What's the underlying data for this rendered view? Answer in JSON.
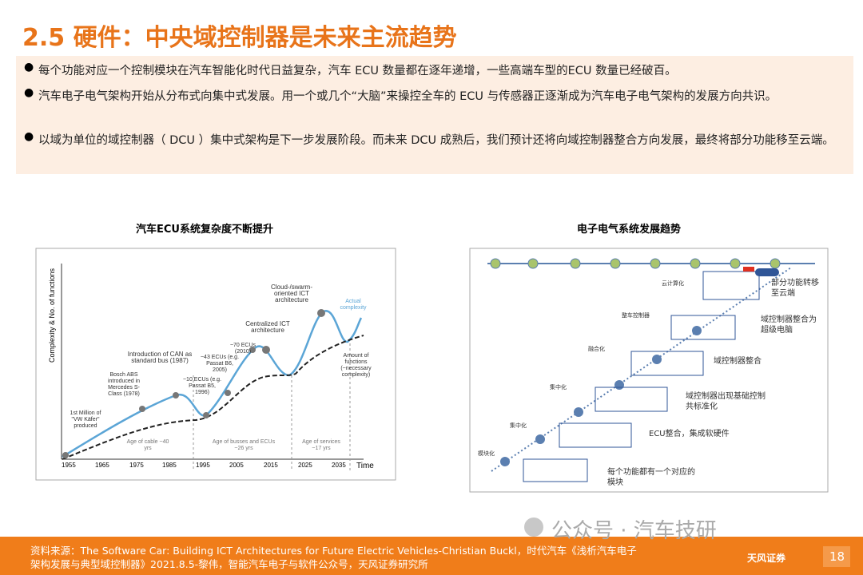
{
  "header": {
    "title": "2.5 硬件：中央域控制器是未来主流趋势"
  },
  "bullets": [
    "每个功能对应一个控制模块在汽车智能化时代日益复杂，汽车 ECU 数量都在逐年递增，一些高端车型的ECU 数量已经破百。",
    "汽车电子电气架构开始从分布式向集中式发展。用一个或几个“大脑”来操控全车的 ECU 与传感器正逐渐成为汽车电子电气架构的发展方向共识。",
    "以域为单位的域控制器（ DCU ）集中式架构是下一步发展阶段。而未来 DCU 成熟后，我们预计还将向域控制器整合方向发展，最终将部分功能移至云端。"
  ],
  "figures": [
    {
      "title": "汽车ECU系统复杂度不断提升",
      "y_label": "Complexity & No. of functions",
      "x_label": "Time",
      "x_ticks": [
        "1955",
        "1965",
        "1975",
        "1985",
        "1995",
        "2005",
        "2015",
        "2025",
        "2035"
      ],
      "annotations": [
        "1st Million of \"VW Käfer\" produced",
        "Bosch ABS introduced in Mercedes S-Class (1978)",
        "Introduction of CAN as standard bus (1987)",
        "~10 ECUs (e.g. Passat B5, 1996)",
        "~43 ECUs (e.g. Passat B6, 2005)",
        "~70 ECUs (2010)",
        "Centralized ICT architecture",
        "Cloud-/swarm-oriented ICT architecture",
        "Actual complexity",
        "Amount of functions (~necessary complexity)",
        "Age of cable ~40 yrs",
        "Age of busses and ECUs ~26 yrs",
        "Age of services ~17 yrs"
      ]
    },
    {
      "title": "电子电气系统发展趋势",
      "stages": [
        "云计算化",
        "整车控制器",
        "融合化",
        "集中化",
        "集中化",
        "模块化"
      ],
      "descriptions": [
        "部分功能转移至云端",
        "域控制器整合为超级电脑",
        "域控制器整合",
        "域控制器出现基础控制共标准化",
        "ECU整合，集成软硬件",
        "每个功能都有一个对应的模块"
      ]
    }
  ],
  "footer": {
    "source": "资料来源：The Software Car: Building ICT Architectures for Future Electric Vehicles-Christian Buckl，时代汽车《浅析汽车电子架构发展与典型域控制器》2021.8.5-黎伟，智能汽车电子与软件公众号，天风证券研究所",
    "watermark": "公众号 · 汽车技研",
    "logo": "天风证券",
    "page": "18"
  }
}
